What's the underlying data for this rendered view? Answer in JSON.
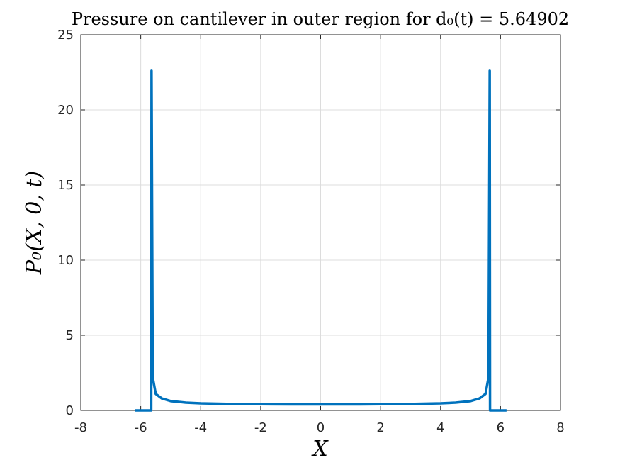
{
  "chart_data": {
    "type": "line",
    "title": "Pressure on cantilever in outer region for d₀(t) = 5.64902",
    "xlabel": "X",
    "ylabel": "P₀(X, 0, t)",
    "xlim": [
      -8,
      8
    ],
    "ylim": [
      0,
      25
    ],
    "xticks": [
      -8,
      -6,
      -4,
      -2,
      0,
      2,
      4,
      6,
      8
    ],
    "yticks": [
      0,
      5,
      10,
      15,
      20,
      25
    ],
    "grid": true,
    "line_color": "#0072BD",
    "series": [
      {
        "x": [
          -6.2,
          -5.68,
          -5.65,
          -5.64,
          -5.6,
          -5.5,
          -5.3,
          -5.0,
          -4.5,
          -4.0,
          -3.0,
          -2.0,
          -1.0,
          0.0,
          1.0,
          2.0,
          3.0,
          4.0,
          4.5,
          5.0,
          5.3,
          5.5,
          5.6,
          5.64,
          5.65,
          5.68,
          6.2
        ],
        "y": [
          0,
          0,
          0,
          22.6,
          2.2,
          1.1,
          0.8,
          0.62,
          0.52,
          0.47,
          0.43,
          0.41,
          0.4,
          0.4,
          0.4,
          0.41,
          0.43,
          0.47,
          0.52,
          0.62,
          0.8,
          1.1,
          2.2,
          22.6,
          0,
          0,
          0
        ]
      }
    ]
  }
}
